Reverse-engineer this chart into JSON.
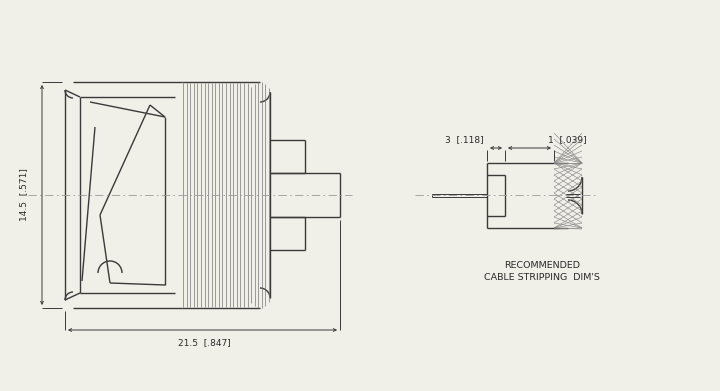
{
  "bg_color": "#f0efe8",
  "line_color": "#3a3a3a",
  "dim_color": "#3a3a3a",
  "centerline_color": "#999999",
  "text_color": "#2a2a2a",
  "dim_14_5": "14.5  [.571]",
  "dim_21_5": "21.5  [.847]",
  "dim_3": "3  [.118]",
  "dim_1": "1  [.039]",
  "rec_text1": "RECOMMENDED",
  "rec_text2": "CABLE STRIPPING  DIM'S"
}
